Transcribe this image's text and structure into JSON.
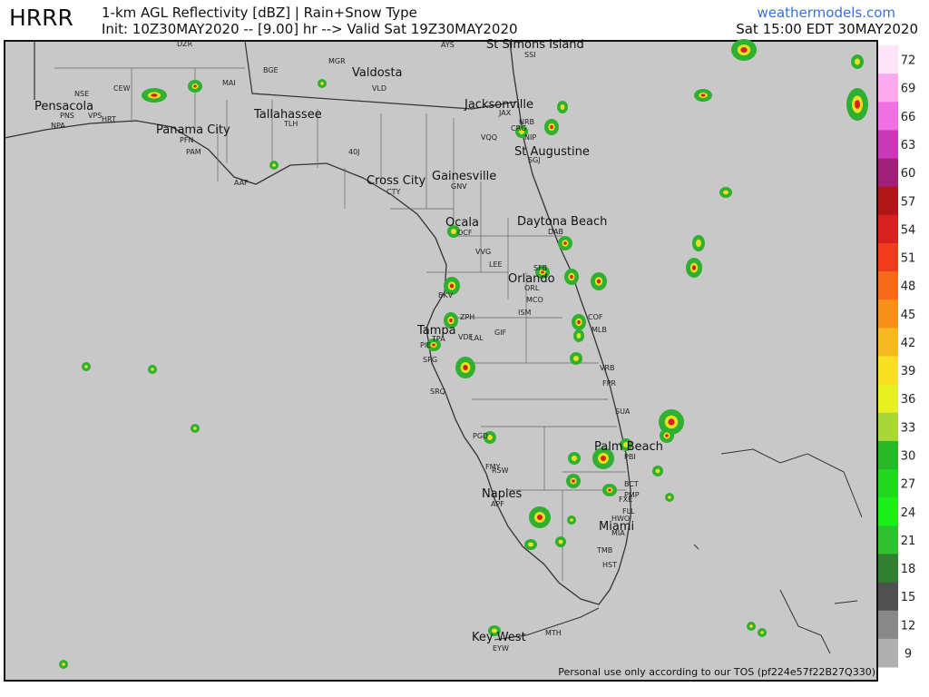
{
  "header": {
    "model": "HRRR",
    "product": "1-km AGL Reflectivity [dBZ] | Rain+Snow Type",
    "run": "Init: 10Z30MAY2020 -- [9.00] hr --> Valid Sat 19Z30MAY2020",
    "site": "weathermodels.com",
    "valid_local": "Sat 15:00 EDT 30MAY2020"
  },
  "cities": [
    "St Simons Island",
    "Valdosta",
    "Pensacola",
    "Panama City",
    "Tallahassee",
    "Jacksonville",
    "St Augustine",
    "Cross City",
    "Gainesville",
    "Ocala",
    "Daytona Beach",
    "Orlando",
    "Tampa",
    "Palm Beach",
    "Naples",
    "Miami",
    "Key West"
  ],
  "stations": [
    "DZR",
    "BGE",
    "MGR",
    "VLD",
    "AYS",
    "SSI",
    "NSE",
    "CEW",
    "MAI",
    "PNS",
    "VPS",
    "HRT",
    "NPA",
    "PFN",
    "PAM",
    "TLH",
    "AAF",
    "40J",
    "JAX",
    "CRG",
    "NIP",
    "VQQ",
    "NRB",
    "SGJ",
    "CTY",
    "GNV",
    "OCF",
    "DAB",
    "VVG",
    "LEE",
    "SFB",
    "ORL",
    "MCO",
    "ISM",
    "BKV",
    "ZPH",
    "TPA",
    "VDF",
    "LAL",
    "GIF",
    "PIE",
    "SPG",
    "SRQ",
    "MLB",
    "COF",
    "VRB",
    "FPR",
    "SUA",
    "PGD",
    "FMY",
    "RSW",
    "APF",
    "PBI",
    "BCT",
    "PMP",
    "FXE",
    "FLL",
    "HWO",
    "MIA",
    "TMB",
    "HST",
    "MTH",
    "EYW"
  ],
  "legend": {
    "ticks": [
      72,
      69,
      66,
      63,
      60,
      57,
      54,
      51,
      48,
      45,
      42,
      39,
      36,
      33,
      30,
      27,
      24,
      21,
      18,
      15,
      12,
      9
    ],
    "colors": [
      "#fde4f6",
      "#fba9ec",
      "#f070e2",
      "#c838b8",
      "#a0207a",
      "#b01818",
      "#d82020",
      "#f03c1c",
      "#f66a1a",
      "#f8901c",
      "#f8b820",
      "#f8e020",
      "#e8f020",
      "#a8d838",
      "#28b828",
      "#20d820",
      "#18f018",
      "#30c030",
      "#308030",
      "#505050",
      "#888888",
      "#b0b0b0"
    ]
  },
  "footer": "Personal use only according to our TOS (pf224e57f22B27Q330)"
}
